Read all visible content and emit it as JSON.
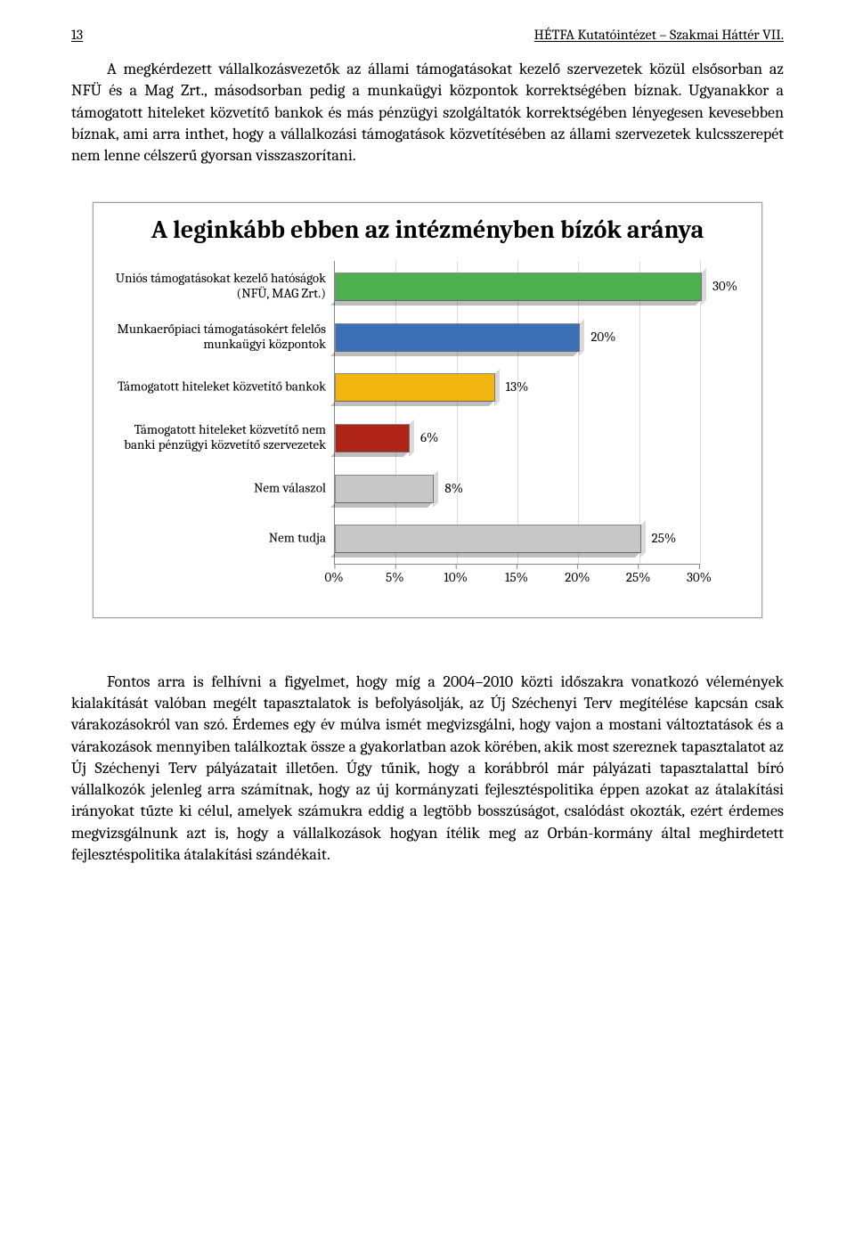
{
  "header": {
    "page_number": "13",
    "title": "HÉTFA Kutatóintézet – Szakmai Háttér VII."
  },
  "paragraphs": {
    "p1": "A megkérdezett vállalkozásvezetők az állami támogatásokat kezelő szervezetek közül elsősorban az NFÜ és a Mag Zrt., másodsorban pedig a munkaügyi központok korrektségében bíznak. Ugyanakkor a támogatott hiteleket közvetítő bankok és más pénzügyi szolgáltatók korrektségében lényegesen kevesebben bíznak, ami arra inthet, hogy a vállalkozási támogatások közvetítésében az állami szervezetek kulcsszerepét nem lenne célszerű gyorsan visszaszorítani.",
    "p2": "Fontos arra is felhívni a figyelmet, hogy míg a 2004–2010 közti időszakra vonatkozó vélemények kialakítását valóban megélt tapasztalatok is befolyásolják, az Új Széchenyi Terv megítélése kapcsán csak várakozásokról van szó. Érdemes egy év múlva ismét megvizsgálni, hogy vajon a mostani változtatások és a várakozások mennyiben találkoztak össze a gyakorlatban azok körében, akik most szereznek tapasztalatot az Új Széchenyi Terv pályázatait illetően. Úgy tűnik, hogy a korábbról már pályázati tapasztalattal bíró vállalkozók jelenleg arra számítnak, hogy az új kormányzati fejlesztéspolitika éppen azokat az átalakítási irányokat tűzte ki célul, amelyek számukra eddig a legtöbb bosszúságot, csalódást okozták, ezért érdemes megvizsgálnunk azt is, hogy a vállalkozások hogyan ítélik meg az Orbán-kormány által meghirdetett fejlesztéspolitika átalakítási szándékait."
  },
  "chart": {
    "type": "bar-horizontal",
    "title": "A leginkább ebben az intézményben bízók aránya",
    "x_max": 30,
    "x_tick_step": 5,
    "x_ticks": [
      "0%",
      "5%",
      "10%",
      "15%",
      "20%",
      "25%",
      "30%"
    ],
    "grid_color": "#d9d9d9",
    "axis_color": "#888888",
    "background_color": "#ffffff",
    "label_fontsize": 15,
    "title_fontsize": 28,
    "bars": [
      {
        "label": "Uniós támogatásokat kezelő hatóságok (NFÜ, MAG Zrt.)",
        "value": 30,
        "value_label": "30%",
        "color": "#4cb050"
      },
      {
        "label": "Munkaerőpiaci támogatásokért felelős munkaügyi központok",
        "value": 20,
        "value_label": "20%",
        "color": "#3b6fb6"
      },
      {
        "label": "Támogatott hiteleket közvetítő bankok",
        "value": 13,
        "value_label": "13%",
        "color": "#f2b40e"
      },
      {
        "label": "Támogatott hiteleket közvetítő nem banki pénzügyi közvetítő szervezetek",
        "value": 6,
        "value_label": "6%",
        "color": "#b02418"
      },
      {
        "label": "Nem válaszol",
        "value": 8,
        "value_label": "8%",
        "color": "#c7c7c7"
      },
      {
        "label": "Nem tudja",
        "value": 25,
        "value_label": "25%",
        "color": "#c7c7c7"
      }
    ]
  }
}
